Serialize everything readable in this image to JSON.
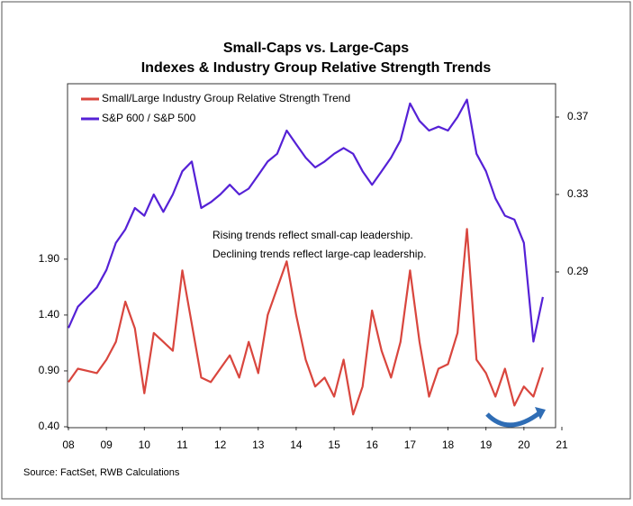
{
  "chart_data": {
    "type": "line",
    "title": "Small-Caps vs. Large-Caps",
    "subtitle": "Indexes & Industry Group Relative Strength Trends",
    "annotations": [
      "Rising trends reflect small-cap leadership.",
      "Declining trends reflect large-cap leadership."
    ],
    "source": "Source: FactSet, RWB Calculations",
    "legend": "top-left",
    "x": [
      2008,
      2008.25,
      2008.5,
      2008.75,
      2009,
      2009.25,
      2009.5,
      2009.75,
      2010,
      2010.25,
      2010.5,
      2010.75,
      2011,
      2011.25,
      2011.5,
      2011.75,
      2012,
      2012.25,
      2012.5,
      2012.75,
      2013,
      2013.25,
      2013.5,
      2013.75,
      2014,
      2014.25,
      2014.5,
      2014.75,
      2015,
      2015.25,
      2015.5,
      2015.75,
      2016,
      2016.25,
      2016.5,
      2016.75,
      2017,
      2017.25,
      2017.5,
      2017.75,
      2018,
      2018.25,
      2018.5,
      2018.75,
      2019,
      2019.25,
      2019.5,
      2019.75,
      2020,
      2020.25,
      2020.5
    ],
    "series": [
      {
        "name": "Small/Large Industry Group Relative Strength Trend",
        "color": "#d9463e",
        "axis": "y",
        "values": [
          0.8,
          0.92,
          0.9,
          0.88,
          1.0,
          1.16,
          1.52,
          1.28,
          0.7,
          1.24,
          1.16,
          1.08,
          1.8,
          1.32,
          0.84,
          0.8,
          0.92,
          1.04,
          0.84,
          1.16,
          0.88,
          1.4,
          1.64,
          1.88,
          1.4,
          1.0,
          0.76,
          0.84,
          0.67,
          1.0,
          0.51,
          0.76,
          1.44,
          1.08,
          0.84,
          1.16,
          1.8,
          1.16,
          0.67,
          0.92,
          0.96,
          1.24,
          2.17,
          1.0,
          0.88,
          0.67,
          0.92,
          0.59,
          0.76,
          0.67,
          0.93
        ]
      },
      {
        "name": "S&P 600 / S&P 500",
        "color": "#5521d6",
        "axis": "y2",
        "values": [
          0.261,
          0.272,
          0.277,
          0.282,
          0.291,
          0.305,
          0.312,
          0.323,
          0.319,
          0.33,
          0.321,
          0.33,
          0.342,
          0.347,
          0.323,
          0.326,
          0.33,
          0.335,
          0.33,
          0.333,
          0.34,
          0.347,
          0.351,
          0.363,
          0.356,
          0.349,
          0.344,
          0.347,
          0.351,
          0.354,
          0.351,
          0.342,
          0.335,
          0.342,
          0.349,
          0.358,
          0.377,
          0.368,
          0.363,
          0.365,
          0.363,
          0.37,
          0.379,
          0.351,
          0.342,
          0.328,
          0.319,
          0.317,
          0.305,
          0.254,
          0.277
        ]
      }
    ],
    "xlim": [
      2008,
      2021
    ],
    "xticks": [
      {
        "value": 2008,
        "label": "08"
      },
      {
        "value": 2009,
        "label": "09"
      },
      {
        "value": 2010,
        "label": "10"
      },
      {
        "value": 2011,
        "label": "11"
      },
      {
        "value": 2012,
        "label": "12"
      },
      {
        "value": 2013,
        "label": "13"
      },
      {
        "value": 2014,
        "label": "14"
      },
      {
        "value": 2015,
        "label": "15"
      },
      {
        "value": 2016,
        "label": "16"
      },
      {
        "value": 2017,
        "label": "17"
      },
      {
        "value": 2018,
        "label": "18"
      },
      {
        "value": 2019,
        "label": "19"
      },
      {
        "value": 2020,
        "label": "20"
      },
      {
        "value": 2021,
        "label": "21"
      }
    ],
    "ylim": [
      0.4,
      3.47
    ],
    "yticks": [
      {
        "value": 0.4,
        "label": "0.40"
      },
      {
        "value": 0.9,
        "label": "0.90"
      },
      {
        "value": 1.4,
        "label": "1.40"
      },
      {
        "value": 1.9,
        "label": "1.90"
      }
    ],
    "y2lim": [
      0.21,
      0.3872
    ],
    "y2ticks": [
      0.29,
      0.33,
      0.37
    ]
  }
}
